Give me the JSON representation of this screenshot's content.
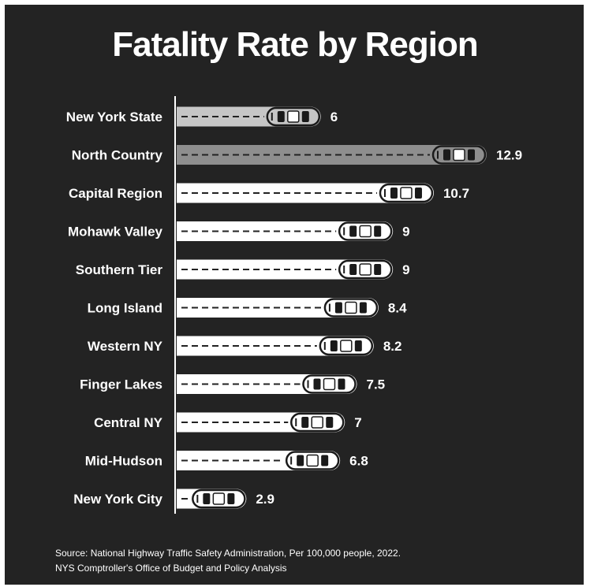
{
  "colors": {
    "background": "#232323",
    "bar_default": "#ffffff",
    "bar_new_york_state": "#c6c6c6",
    "bar_north_country": "#8e8e8e",
    "text": "#ffffff"
  },
  "chart_data": {
    "type": "bar",
    "orientation": "horizontal",
    "title": "Fatality Rate by Region",
    "categories": [
      "New York State",
      "North Country",
      "Capital Region",
      "Mohawk Valley",
      "Southern Tier",
      "Long Island",
      "Western NY",
      "Finger Lakes",
      "Central NY",
      "Mid-Hudson",
      "New York City"
    ],
    "values": [
      6,
      12.9,
      10.7,
      9,
      9,
      8.4,
      8.2,
      7.5,
      7,
      6.8,
      2.9
    ],
    "value_labels": [
      "6",
      "12.9",
      "10.7",
      "9",
      "9",
      "8.4",
      "8.2",
      "7.5",
      "7",
      "6.8",
      "2.9"
    ],
    "bar_marker": "car-icon",
    "xlim": [
      0,
      12.9
    ],
    "grid": false,
    "legend": "none"
  },
  "source": {
    "line1": "Source: National Highway Traffic Safety Administration, Per 100,000 people, 2022.",
    "line2": "NYS Comptroller's Office of Budget and Policy Analysis"
  }
}
